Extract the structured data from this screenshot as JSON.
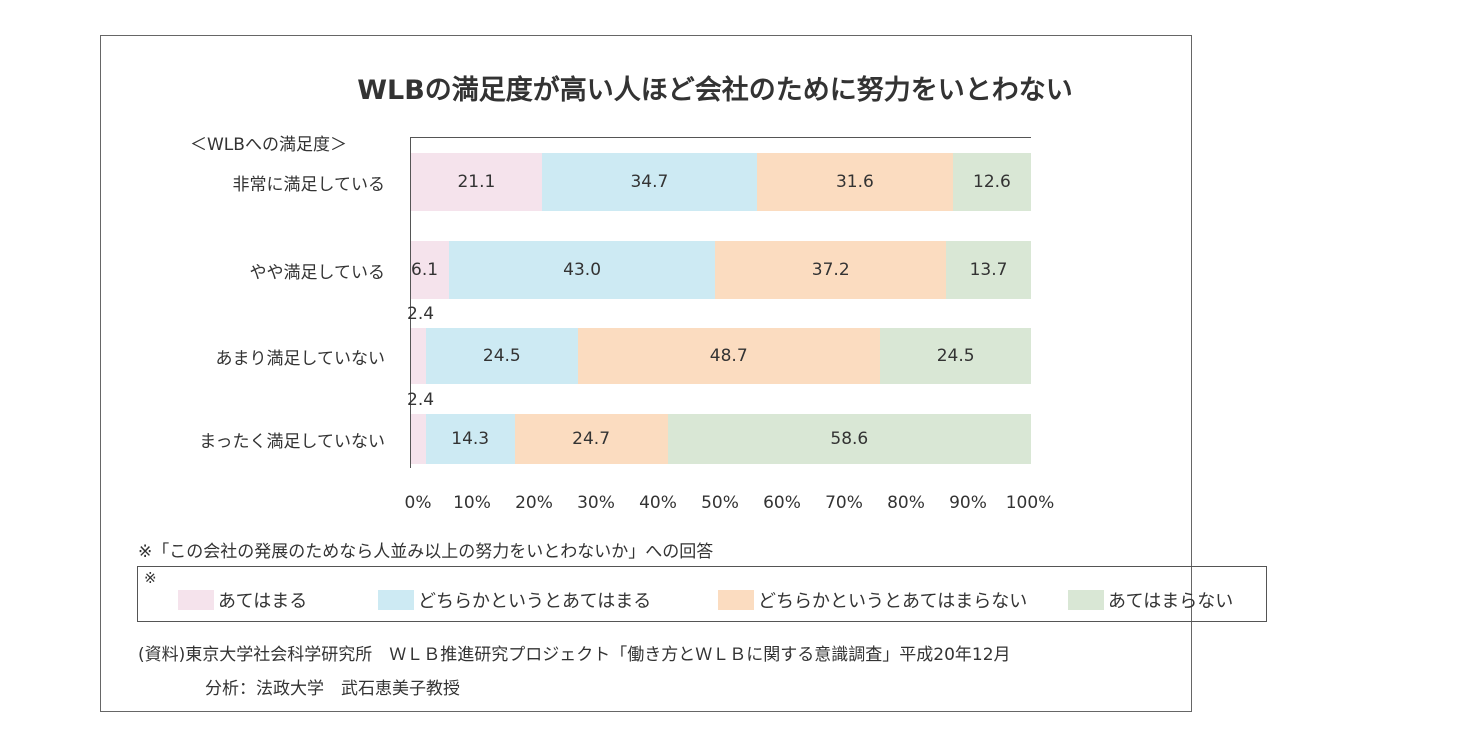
{
  "chart_data": {
    "type": "bar",
    "orientation": "horizontal-stacked-100",
    "title": "WLBの満足度が高い人ほど会社のために努力をいとわない",
    "axis_title": "＜WLBへの満足度＞",
    "categories": [
      "非常に満足している",
      "やや満足している",
      "あまり満足していない",
      "まったく満足していない"
    ],
    "series": [
      {
        "name": "あてはまる",
        "color": "#f5e3ec",
        "values": [
          21.1,
          6.1,
          2.4,
          2.4
        ]
      },
      {
        "name": "どちらかというとあてはまる",
        "color": "#cdeaf3",
        "values": [
          34.7,
          43.0,
          24.5,
          14.3
        ]
      },
      {
        "name": "どちらかというとあてはまらない",
        "color": "#fbdcc0",
        "values": [
          31.6,
          37.2,
          48.7,
          24.7
        ]
      },
      {
        "name": "あてはまらない",
        "color": "#d9e7d5",
        "values": [
          12.6,
          13.7,
          24.5,
          58.6
        ]
      }
    ],
    "xlim": [
      0,
      100
    ],
    "xticks": [
      "0%",
      "10%",
      "20%",
      "30%",
      "40%",
      "50%",
      "60%",
      "70%",
      "80%",
      "90%",
      "100%"
    ],
    "legend_placement": "bottom",
    "legend_mark": "※",
    "note": "※「この会社の発展のためなら人並み以上の努力をいとわないか」への回答",
    "source": [
      "(資料)東京大学社会科学研究所　ＷＬＢ推進研究プロジェクト「働き方とＷＬＢに関する意識調査」平成20年12月",
      "分析：法政大学　武石恵美子教授"
    ]
  }
}
